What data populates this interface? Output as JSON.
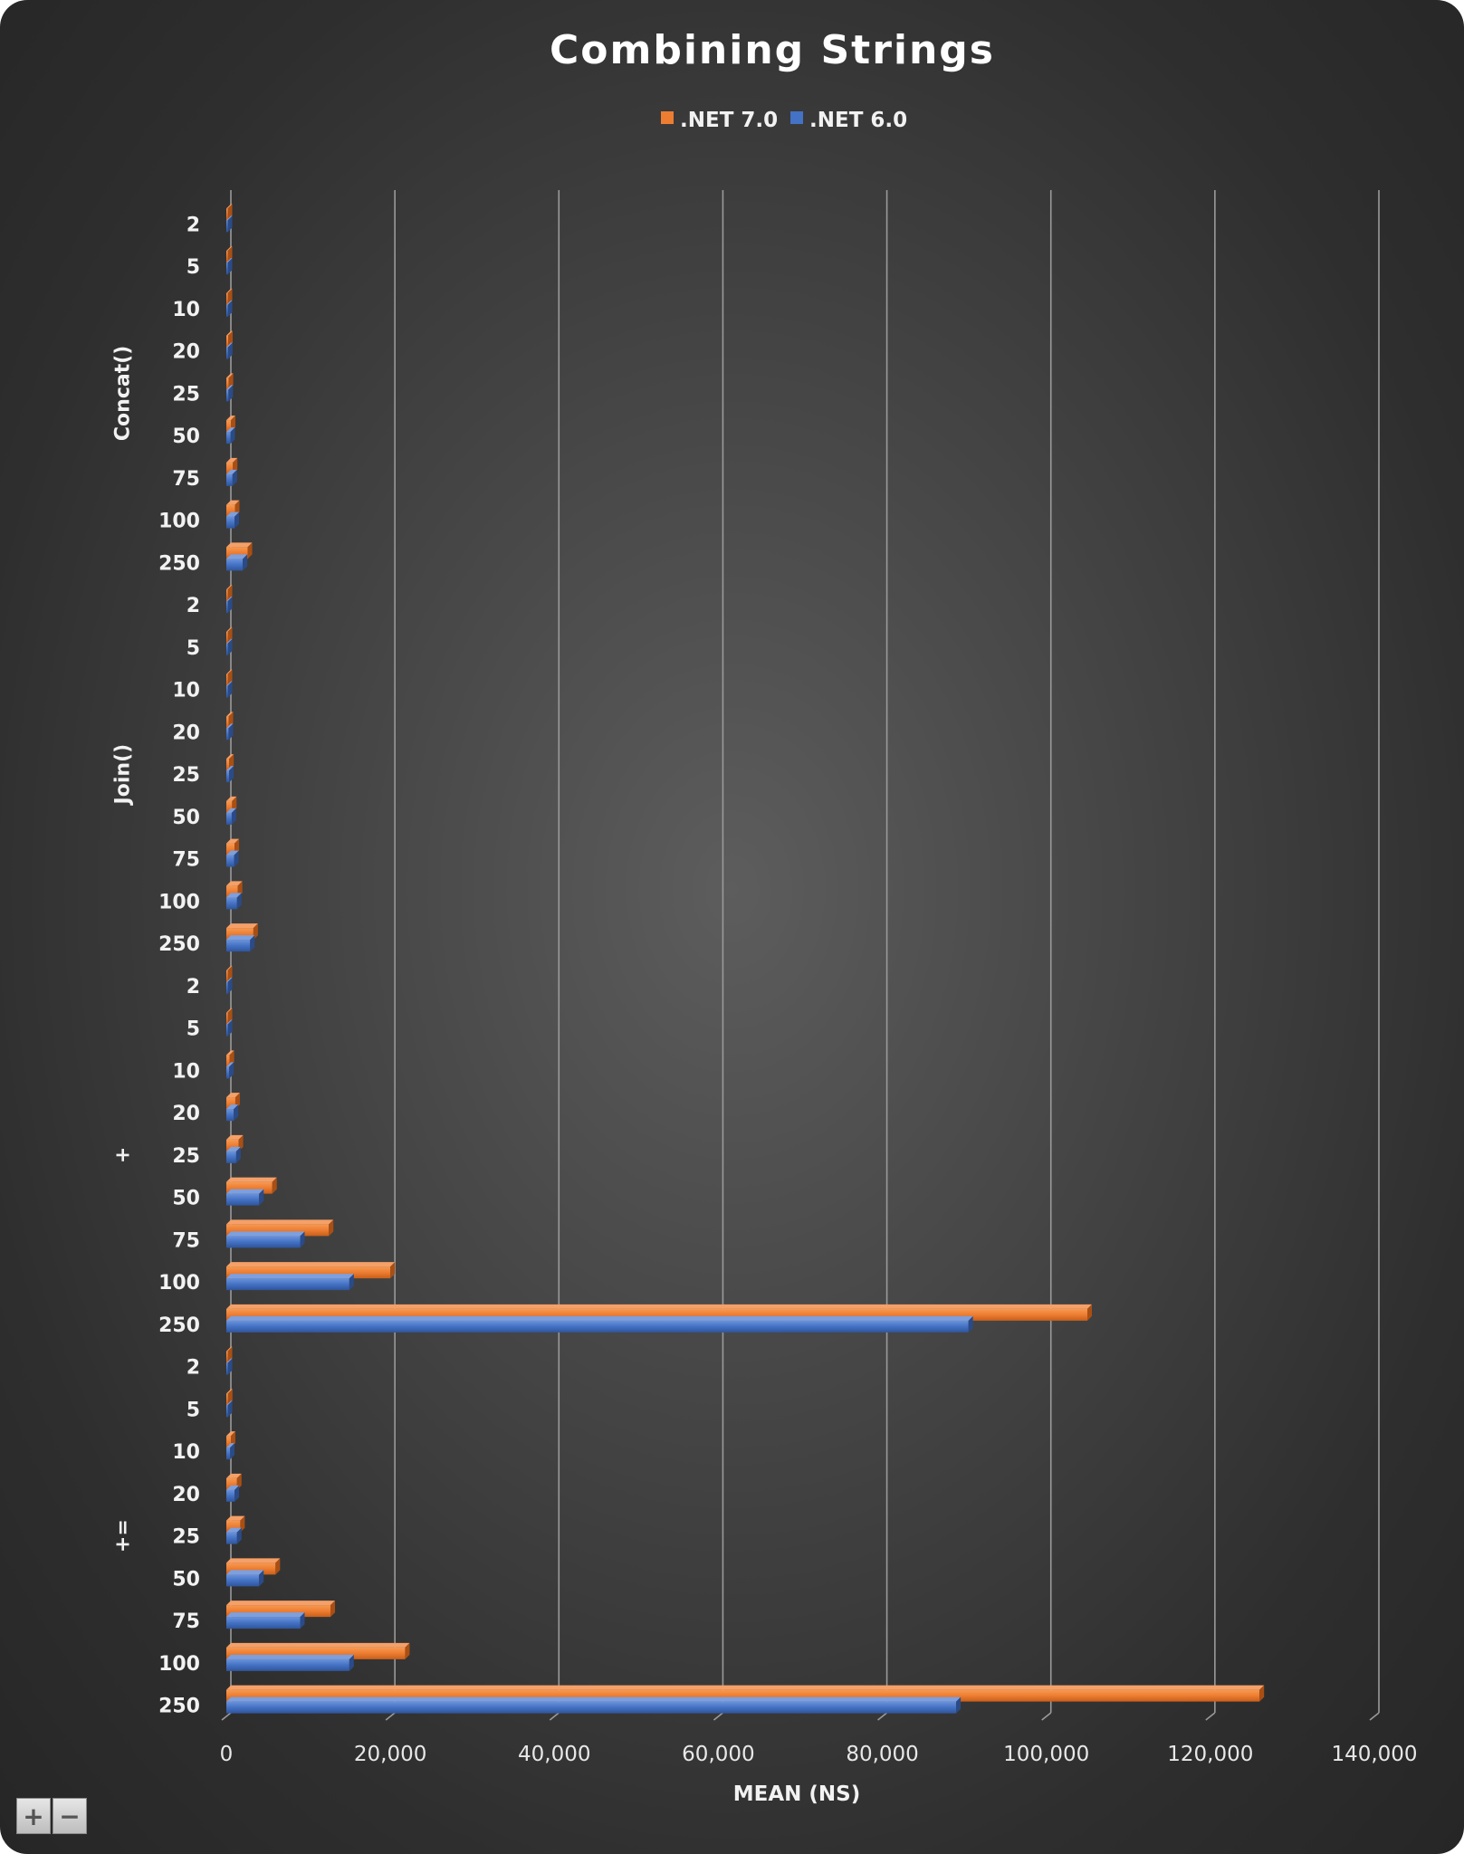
{
  "chart_data": {
    "type": "bar",
    "orientation": "horizontal",
    "title": "Combining Strings",
    "xlabel": "MEAN (NS)",
    "xlim": [
      0,
      140000
    ],
    "xticks": [
      0,
      20000,
      40000,
      60000,
      80000,
      100000,
      120000,
      140000
    ],
    "xtick_labels": [
      "0",
      "20,000",
      "40,000",
      "60,000",
      "80,000",
      "100,000",
      "120,000",
      "140,000"
    ],
    "grid": true,
    "legend_position": "top",
    "groups": [
      {
        "name": "Concat()",
        "categories": [
          "2",
          "5",
          "10",
          "20",
          "25",
          "50",
          "75",
          "100",
          "250"
        ],
        "series": [
          {
            "name": ".NET 7.0",
            "values": [
              30,
              60,
              120,
              220,
              290,
              550,
              800,
              1050,
              2600
            ]
          },
          {
            "name": ".NET 6.0",
            "values": [
              30,
              60,
              110,
              200,
              260,
              500,
              750,
              1000,
              2000
            ]
          }
        ]
      },
      {
        "name": "Join()",
        "categories": [
          "2",
          "5",
          "10",
          "20",
          "25",
          "50",
          "75",
          "100",
          "250"
        ],
        "series": [
          {
            "name": ".NET 7.0",
            "values": [
              40,
              80,
              150,
              280,
              350,
              700,
              1000,
              1400,
              3300
            ]
          },
          {
            "name": ".NET 6.0",
            "values": [
              40,
              80,
              150,
              270,
              340,
              650,
              950,
              1300,
              2900
            ]
          }
        ]
      },
      {
        "name": "+",
        "categories": [
          "2",
          "5",
          "10",
          "20",
          "25",
          "50",
          "75",
          "100",
          "250"
        ],
        "series": [
          {
            "name": ".NET 7.0",
            "values": [
              50,
              150,
              400,
              1100,
              1500,
              5600,
              12500,
              20000,
              105000
            ]
          },
          {
            "name": ".NET 6.0",
            "values": [
              40,
              120,
              350,
              900,
              1200,
              4000,
              9000,
              15000,
              90500
            ]
          }
        ]
      },
      {
        "name": "+=",
        "categories": [
          "2",
          "5",
          "10",
          "20",
          "25",
          "50",
          "75",
          "100",
          "250"
        ],
        "series": [
          {
            "name": ".NET 7.0",
            "values": [
              60,
              200,
              550,
              1300,
              1700,
              6000,
              12700,
              21800,
              126000
            ]
          },
          {
            "name": ".NET 6.0",
            "values": [
              50,
              150,
              450,
              1000,
              1300,
              4000,
              9000,
              15000,
              89000
            ]
          }
        ]
      }
    ]
  },
  "legend": [
    {
      "label": ".NET 7.0",
      "color": "#ed7d31"
    },
    {
      "label": ".NET 6.0",
      "color": "#4472c4"
    }
  ],
  "zoom": {
    "in_label": "+",
    "out_label": "−"
  }
}
